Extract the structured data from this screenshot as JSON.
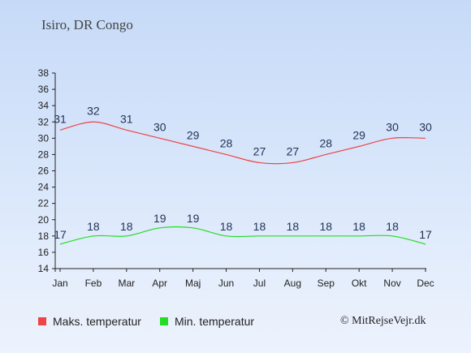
{
  "location": "Isiro, DR Congo",
  "credit": "© MitRejseVejr.dk",
  "colors": {
    "max": "#ee4444",
    "min": "#22dd22",
    "axis": "#222222",
    "label": "#223355"
  },
  "chart_data": {
    "type": "line",
    "categories": [
      "Jan",
      "Feb",
      "Mar",
      "Apr",
      "Maj",
      "Jun",
      "Jul",
      "Aug",
      "Sep",
      "Okt",
      "Nov",
      "Dec"
    ],
    "ylim": [
      14,
      38
    ],
    "yticks": [
      14,
      16,
      18,
      20,
      22,
      24,
      26,
      28,
      30,
      32,
      34,
      36,
      38
    ],
    "grid": false,
    "legend_position": "bottom",
    "series": [
      {
        "name": "Maks. temperatur",
        "color": "#ee4444",
        "values": [
          31,
          32,
          31,
          30,
          29,
          28,
          27,
          27,
          28,
          29,
          30,
          30
        ]
      },
      {
        "name": "Min. temperatur",
        "color": "#22dd22",
        "values": [
          17,
          18,
          18,
          19,
          19,
          18,
          18,
          18,
          18,
          18,
          18,
          17
        ]
      }
    ]
  }
}
